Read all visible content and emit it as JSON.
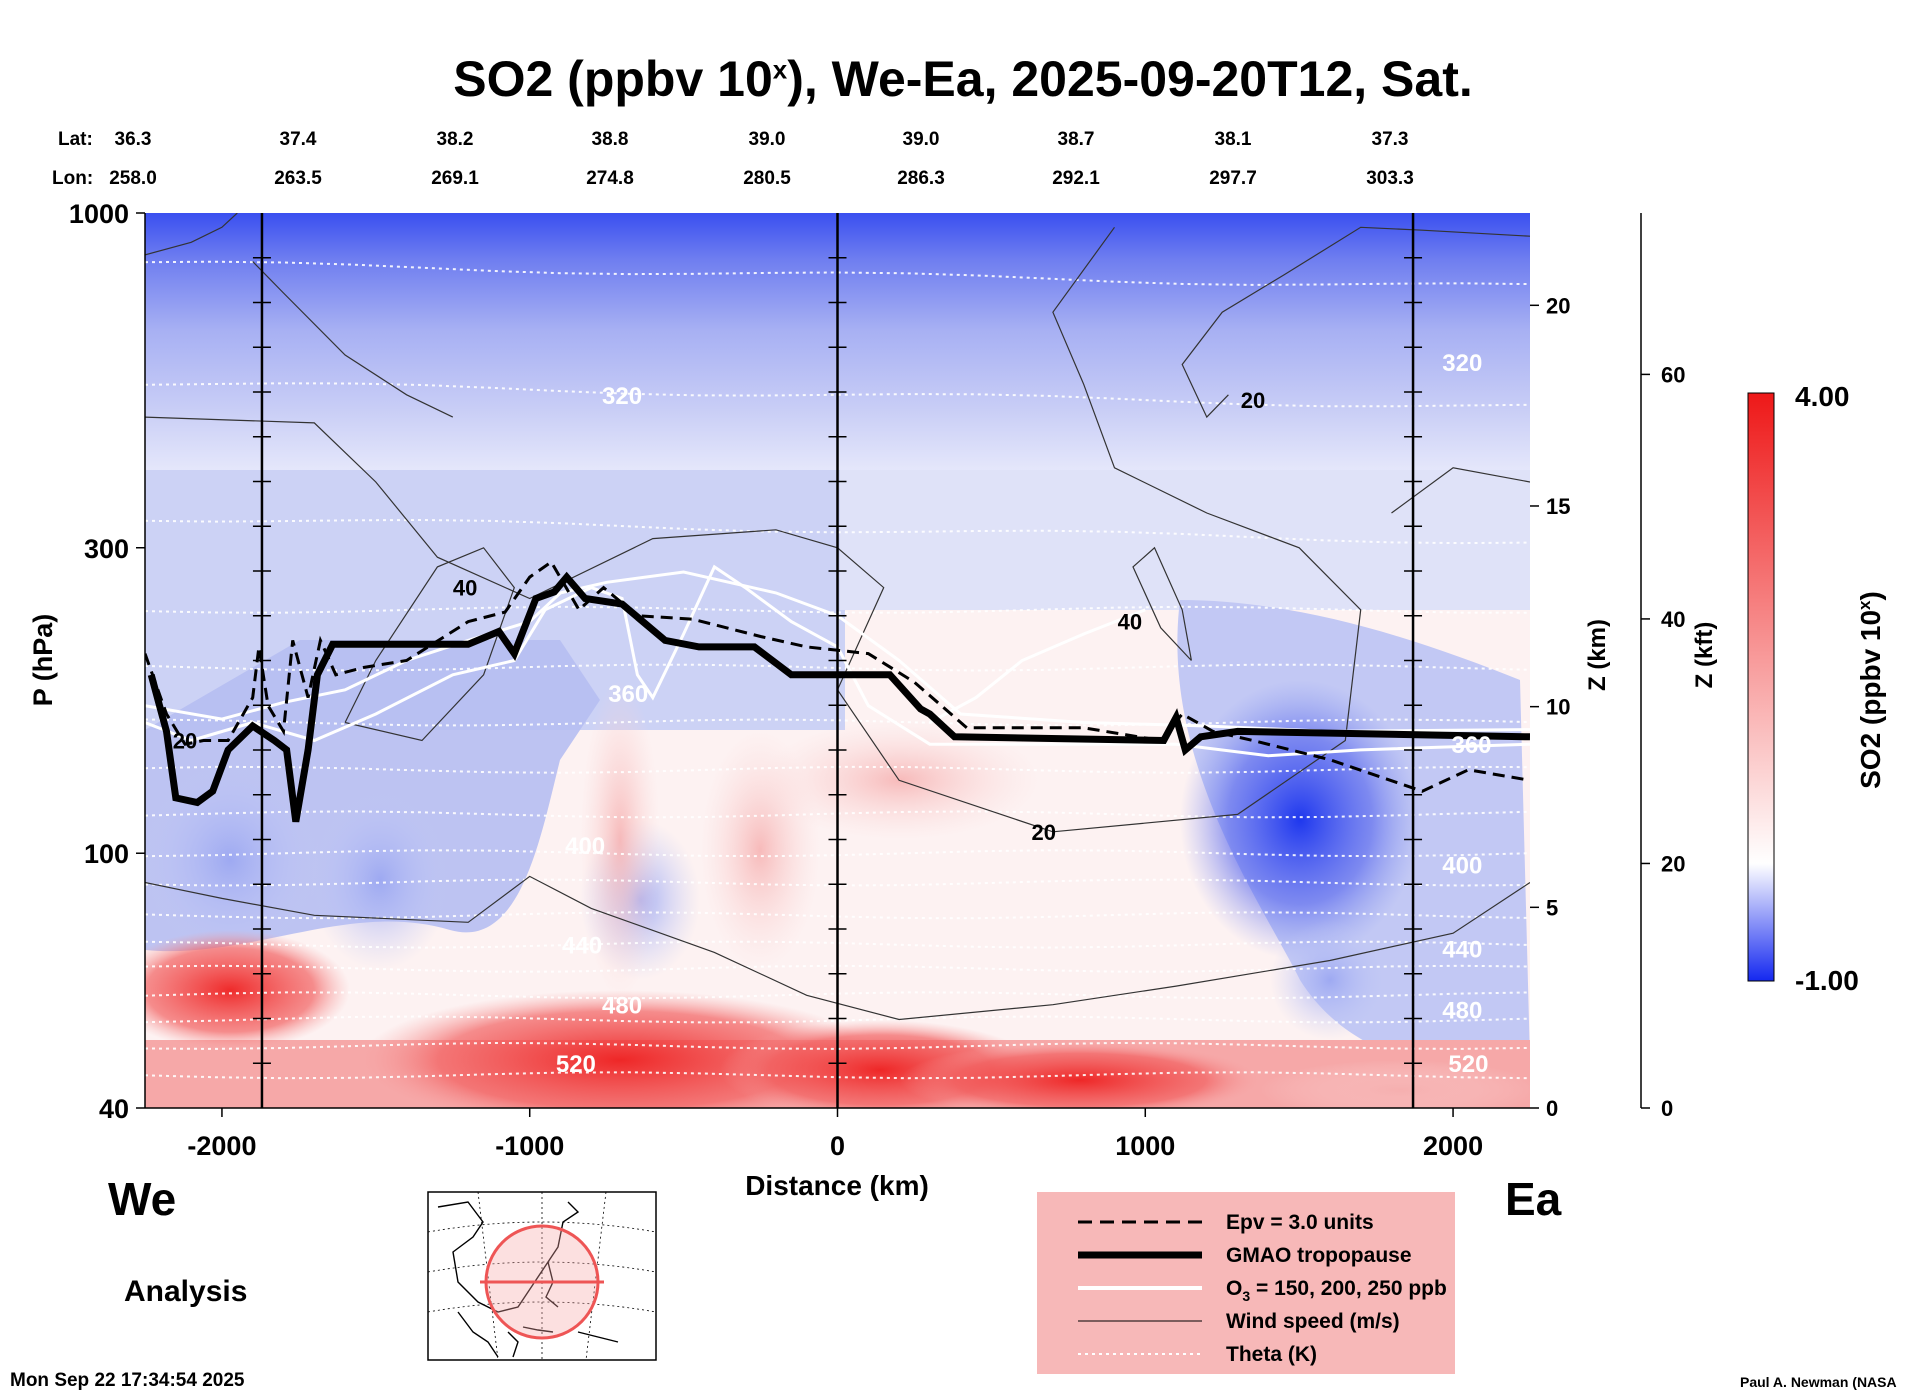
{
  "chart_data": {
    "type": "heatmap",
    "title": "SO2 (ppbv 10",
    "title_sup": "x",
    "title_suffix": "), We-Ea, 2025-09-20T12, Sat.",
    "xlabel": "Distance (km)",
    "ylabel": "P (hPa)",
    "z_km_label": "Z (km)",
    "z_kft_label": "Z (kft)",
    "xlim": [
      -2250,
      2250
    ],
    "ylim_hpa": [
      1000,
      40
    ],
    "x_ticks": [
      -2000,
      -1000,
      0,
      1000,
      2000
    ],
    "p_ticks": [
      40,
      100,
      300,
      1000
    ],
    "z_km_ticks": [
      0,
      5,
      10,
      15,
      20
    ],
    "z_kft_ticks": [
      0,
      20,
      40,
      60
    ],
    "lat_label": "Lat:",
    "lon_label": "Lon:",
    "lats": [
      "36.3",
      "37.4",
      "38.2",
      "38.8",
      "39.0",
      "39.0",
      "38.7",
      "38.1",
      "37.3"
    ],
    "lons": [
      "258.0",
      "263.5",
      "269.1",
      "274.8",
      "280.5",
      "286.3",
      "292.1",
      "297.7",
      "303.3"
    ],
    "ref_lines_km": [
      -1870,
      0,
      1870
    ],
    "colorbar": {
      "min": -1.0,
      "max": 4.0,
      "min_label": "-1.00",
      "max_label": "4.00",
      "label": "SO2 (ppbv 10",
      "label_sup": "x",
      "label_suffix": ")"
    },
    "theta_labels": [
      {
        "text": "520",
        "x": -850,
        "p": 47
      },
      {
        "text": "480",
        "x": -700,
        "p": 58
      },
      {
        "text": "440",
        "x": -830,
        "p": 72
      },
      {
        "text": "400",
        "x": -820,
        "p": 103
      },
      {
        "text": "360",
        "x": -680,
        "p": 178
      },
      {
        "text": "320",
        "x": -700,
        "p": 520
      },
      {
        "text": "520",
        "x": 2050,
        "p": 47
      },
      {
        "text": "480",
        "x": 2030,
        "p": 57
      },
      {
        "text": "440",
        "x": 2030,
        "p": 71
      },
      {
        "text": "400",
        "x": 2030,
        "p": 96
      },
      {
        "text": "360",
        "x": 2060,
        "p": 148
      },
      {
        "text": "320",
        "x": 2030,
        "p": 585
      }
    ],
    "wind_labels": [
      {
        "text": "20",
        "x": 670,
        "p": 108
      },
      {
        "text": "20",
        "x": -2120,
        "p": 150
      },
      {
        "text": "40",
        "x": -1210,
        "p": 260
      },
      {
        "text": "40",
        "x": 950,
        "p": 230
      },
      {
        "text": "20",
        "x": 1350,
        "p": 510
      }
    ],
    "tropopause": [
      [
        -2230,
        190
      ],
      [
        -2180,
        155
      ],
      [
        -2150,
        122
      ],
      [
        -2080,
        120
      ],
      [
        -2030,
        125
      ],
      [
        -1980,
        145
      ],
      [
        -1900,
        158
      ],
      [
        -1830,
        150
      ],
      [
        -1790,
        145
      ],
      [
        -1760,
        112
      ],
      [
        -1720,
        145
      ],
      [
        -1690,
        190
      ],
      [
        -1640,
        212
      ],
      [
        -1500,
        212
      ],
      [
        -1200,
        212
      ],
      [
        -1100,
        222
      ],
      [
        -1050,
        205
      ],
      [
        -980,
        250
      ],
      [
        -920,
        256
      ],
      [
        -880,
        270
      ],
      [
        -820,
        250
      ],
      [
        -700,
        245
      ],
      [
        -560,
        215
      ],
      [
        -450,
        210
      ],
      [
        -270,
        210
      ],
      [
        -150,
        190
      ],
      [
        170,
        190
      ],
      [
        270,
        168
      ],
      [
        300,
        165
      ],
      [
        380,
        152
      ],
      [
        1060,
        150
      ],
      [
        1100,
        163
      ],
      [
        1130,
        145
      ],
      [
        1180,
        152
      ],
      [
        1300,
        155
      ],
      [
        2250,
        152
      ]
    ],
    "epv_dashed": [
      [
        -2250,
        205
      ],
      [
        -2180,
        165
      ],
      [
        -2120,
        148
      ],
      [
        -2060,
        150
      ],
      [
        -1980,
        150
      ],
      [
        -1900,
        175
      ],
      [
        -1880,
        210
      ],
      [
        -1850,
        170
      ],
      [
        -1800,
        155
      ],
      [
        -1770,
        215
      ],
      [
        -1720,
        175
      ],
      [
        -1680,
        215
      ],
      [
        -1630,
        190
      ],
      [
        -1540,
        195
      ],
      [
        -1400,
        200
      ],
      [
        -1200,
        230
      ],
      [
        -1080,
        238
      ],
      [
        -1000,
        270
      ],
      [
        -930,
        285
      ],
      [
        -840,
        240
      ],
      [
        -760,
        260
      ],
      [
        -650,
        235
      ],
      [
        -470,
        232
      ],
      [
        -250,
        218
      ],
      [
        -100,
        210
      ],
      [
        100,
        205
      ],
      [
        250,
        185
      ],
      [
        420,
        157
      ],
      [
        800,
        157
      ],
      [
        1050,
        150
      ],
      [
        1120,
        165
      ],
      [
        1220,
        155
      ],
      [
        1350,
        150
      ],
      [
        1600,
        140
      ],
      [
        1900,
        125
      ],
      [
        2050,
        135
      ],
      [
        2250,
        130
      ]
    ],
    "legend": [
      {
        "style": "dashed",
        "label": "Epv = 3.0 units"
      },
      {
        "style": "thick",
        "label": "GMAO tropopause"
      },
      {
        "style": "white",
        "label": "O",
        "sub": "3",
        "label_suffix": " = 150, 200, 250 ppb"
      },
      {
        "style": "thin",
        "label": "Wind speed (m/s)"
      },
      {
        "style": "dotted",
        "label": "Theta (K)"
      }
    ]
  },
  "labels": {
    "west": "We",
    "east": "Ea",
    "analysis": "Analysis",
    "timestamp": "Mon Sep 22 17:34:54 2025",
    "credit": "Paul A. Newman (NASA"
  },
  "colors": {
    "red": "#ee2020",
    "blue": "#2235ee",
    "legend_bg": "#f7b8b8"
  }
}
